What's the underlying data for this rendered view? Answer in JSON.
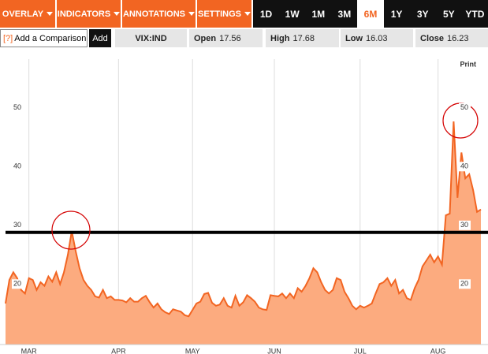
{
  "toolbar": {
    "menus": [
      "OVERLAY",
      "INDICATORS",
      "ANNOTATIONS",
      "SETTINGS"
    ],
    "ranges": [
      "1D",
      "1W",
      "1M",
      "3M",
      "6M",
      "1Y",
      "3Y",
      "5Y",
      "YTD"
    ],
    "active_range": "6M"
  },
  "quote_bar": {
    "help_icon": "[?]",
    "comparison_button": "Add a Comparison",
    "add_button": "Add",
    "symbol": "VIX:IND",
    "open_label": "Open",
    "open": 17.56,
    "high_label": "High",
    "high": 17.68,
    "low_label": "Low",
    "low": 16.03,
    "close_label": "Close",
    "close": 16.23
  },
  "print": "Print",
  "chart_data": {
    "type": "area",
    "line_color": "#f26522",
    "fill_color": "#fcab7f",
    "categories": [
      null,
      null,
      null,
      null,
      null,
      null,
      "MAR",
      null,
      null,
      null,
      null,
      null,
      null,
      null,
      null,
      null,
      null,
      null,
      null,
      null,
      null,
      null,
      null,
      null,
      null,
      null,
      null,
      null,
      null,
      "APR",
      null,
      null,
      null,
      null,
      null,
      null,
      null,
      null,
      null,
      null,
      null,
      null,
      null,
      null,
      null,
      null,
      null,
      null,
      "MAY",
      null,
      null,
      null,
      null,
      null,
      null,
      null,
      null,
      null,
      null,
      null,
      null,
      null,
      null,
      null,
      null,
      null,
      null,
      null,
      null,
      "JUN",
      null,
      null,
      null,
      null,
      null,
      null,
      null,
      null,
      null,
      null,
      null,
      null,
      null,
      null,
      null,
      null,
      null,
      null,
      null,
      null,
      null,
      "JUL",
      null,
      null,
      null,
      null,
      null,
      null,
      null,
      null,
      null,
      null,
      null,
      null,
      null,
      null,
      null,
      null,
      null,
      null,
      null,
      "AUG",
      null,
      null,
      null,
      null,
      null,
      null,
      null,
      null,
      null,
      null,
      null
    ],
    "values": [
      16.7,
      20.7,
      22,
      21,
      19,
      18.4,
      21,
      20.7,
      19,
      20.3,
      19.7,
      21.3,
      20.4,
      22,
      20,
      22,
      25,
      29,
      25.6,
      22.7,
      20.7,
      19.7,
      19,
      17.9,
      17.7,
      19,
      17.6,
      17.9,
      17.3,
      17.3,
      17.2,
      16.9,
      17.6,
      17,
      17,
      17.6,
      18,
      16.9,
      16,
      16.7,
      15.7,
      15.2,
      14.9,
      15.7,
      15.5,
      15.3,
      14.7,
      14.5,
      15.6,
      16.7,
      17,
      18.3,
      18.5,
      16.8,
      16.3,
      16.5,
      17.6,
      16.3,
      16,
      18,
      16.3,
      16.9,
      18.1,
      17.6,
      17,
      16,
      15.7,
      15.6,
      18.1,
      18,
      17.9,
      18.4,
      17.6,
      18.4,
      17.6,
      19.3,
      18.7,
      19.7,
      21,
      22.7,
      22,
      20.3,
      19,
      18.4,
      19,
      21,
      20.7,
      18.7,
      17.6,
      16.3,
      15.7,
      16.3,
      16,
      16.3,
      16.7,
      18.4,
      20,
      20.3,
      21,
      19.7,
      20.7,
      18.4,
      19,
      17.6,
      17.3,
      19.3,
      20.7,
      23,
      24,
      25,
      23.7,
      24.7,
      23.3,
      31.7,
      32,
      47.7,
      34.7,
      42.4,
      38,
      38.7,
      36,
      32.3,
      32.7
    ],
    "ylim": [
      9.7,
      58.3
    ],
    "yticks": [
      20,
      30,
      40,
      50
    ],
    "grid": true,
    "reference_line": 28.8,
    "reference_color": "#000000"
  }
}
